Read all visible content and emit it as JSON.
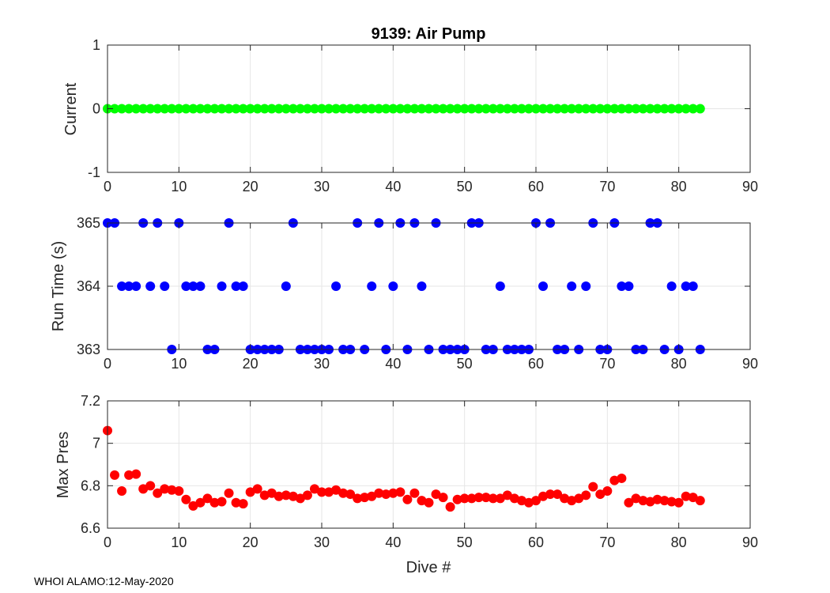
{
  "footer_text": "WHOI ALAMO:12-May-2020",
  "chart_data": [
    {
      "type": "scatter",
      "title": "9139: Air Pump",
      "xlabel": "",
      "ylabel": "Current",
      "xlim": [
        0,
        90
      ],
      "ylim": [
        -1,
        1
      ],
      "x_ticks": [
        "0",
        "10",
        "20",
        "30",
        "40",
        "50",
        "60",
        "70",
        "80",
        "90"
      ],
      "y_ticks": [
        "-1",
        "0",
        "1"
      ],
      "grid": true,
      "color": "#00ff00",
      "x": [
        0,
        1,
        2,
        3,
        4,
        5,
        6,
        7,
        8,
        9,
        10,
        11,
        12,
        13,
        14,
        15,
        16,
        17,
        18,
        19,
        20,
        21,
        22,
        23,
        24,
        25,
        26,
        27,
        28,
        29,
        30,
        31,
        32,
        33,
        34,
        35,
        36,
        37,
        38,
        39,
        40,
        41,
        42,
        43,
        44,
        45,
        46,
        47,
        48,
        49,
        50,
        51,
        52,
        53,
        54,
        55,
        56,
        57,
        58,
        59,
        60,
        61,
        62,
        63,
        64,
        65,
        66,
        67,
        68,
        69,
        70,
        71,
        72,
        73,
        74,
        75,
        76,
        77,
        78,
        79,
        80,
        81,
        82,
        83
      ],
      "y": [
        0,
        0,
        0,
        0,
        0,
        0,
        0,
        0,
        0,
        0,
        0,
        0,
        0,
        0,
        0,
        0,
        0,
        0,
        0,
        0,
        0,
        0,
        0,
        0,
        0,
        0,
        0,
        0,
        0,
        0,
        0,
        0,
        0,
        0,
        0,
        0,
        0,
        0,
        0,
        0,
        0,
        0,
        0,
        0,
        0,
        0,
        0,
        0,
        0,
        0,
        0,
        0,
        0,
        0,
        0,
        0,
        0,
        0,
        0,
        0,
        0,
        0,
        0,
        0,
        0,
        0,
        0,
        0,
        0,
        0,
        0,
        0,
        0,
        0,
        0,
        0,
        0,
        0,
        0,
        0,
        0,
        0,
        0,
        0
      ]
    },
    {
      "type": "scatter",
      "title": "",
      "xlabel": "",
      "ylabel": "Run Time (s)",
      "xlim": [
        0,
        90
      ],
      "ylim": [
        363,
        365
      ],
      "x_ticks": [
        "0",
        "10",
        "20",
        "30",
        "40",
        "50",
        "60",
        "70",
        "80",
        "90"
      ],
      "y_ticks": [
        "363",
        "364",
        "365"
      ],
      "grid": true,
      "color": "#0000ff",
      "x": [
        0,
        1,
        2,
        3,
        4,
        5,
        6,
        7,
        8,
        9,
        10,
        11,
        12,
        13,
        14,
        15,
        16,
        17,
        18,
        19,
        20,
        21,
        22,
        23,
        24,
        25,
        26,
        27,
        28,
        29,
        30,
        31,
        32,
        33,
        34,
        35,
        36,
        37,
        38,
        39,
        40,
        41,
        42,
        43,
        44,
        45,
        46,
        47,
        48,
        49,
        50,
        51,
        52,
        53,
        54,
        55,
        56,
        57,
        58,
        59,
        60,
        61,
        62,
        63,
        64,
        65,
        66,
        67,
        68,
        69,
        70,
        71,
        72,
        73,
        74,
        75,
        76,
        77,
        78,
        79,
        80,
        81,
        82,
        83
      ],
      "y": [
        365,
        365,
        364,
        364,
        364,
        365,
        364,
        365,
        364,
        363,
        365,
        364,
        364,
        364,
        363,
        363,
        364,
        365,
        364,
        364,
        363,
        363,
        363,
        363,
        363,
        364,
        365,
        363,
        363,
        363,
        363,
        363,
        364,
        363,
        363,
        365,
        363,
        364,
        365,
        363,
        364,
        365,
        363,
        365,
        364,
        363,
        365,
        363,
        363,
        363,
        363,
        365,
        365,
        363,
        363,
        364,
        363,
        363,
        363,
        363,
        365,
        364,
        365,
        363,
        363,
        364,
        363,
        364,
        365,
        363,
        363,
        365,
        364,
        364,
        363,
        363,
        365,
        365,
        363,
        364,
        363,
        364,
        364,
        363
      ]
    },
    {
      "type": "scatter",
      "title": "",
      "xlabel": "Dive #",
      "ylabel": "Max Pres",
      "xlim": [
        0,
        90
      ],
      "ylim": [
        6.6,
        7.2
      ],
      "x_ticks": [
        "0",
        "10",
        "20",
        "30",
        "40",
        "50",
        "60",
        "70",
        "80",
        "90"
      ],
      "y_ticks": [
        "6.6",
        "6.8",
        "7",
        "7.2"
      ],
      "grid": true,
      "color": "#ff0000",
      "x": [
        0,
        1,
        2,
        3,
        4,
        5,
        6,
        7,
        8,
        9,
        10,
        11,
        12,
        13,
        14,
        15,
        16,
        17,
        18,
        19,
        20,
        21,
        22,
        23,
        24,
        25,
        26,
        27,
        28,
        29,
        30,
        31,
        32,
        33,
        34,
        35,
        36,
        37,
        38,
        39,
        40,
        41,
        42,
        43,
        44,
        45,
        46,
        47,
        48,
        49,
        50,
        51,
        52,
        53,
        54,
        55,
        56,
        57,
        58,
        59,
        60,
        61,
        62,
        63,
        64,
        65,
        66,
        67,
        68,
        69,
        70,
        71,
        72,
        73,
        74,
        75,
        76,
        77,
        78,
        79,
        80,
        81,
        82,
        83
      ],
      "y": [
        7.06,
        6.85,
        6.775,
        6.85,
        6.855,
        6.785,
        6.8,
        6.765,
        6.785,
        6.78,
        6.775,
        6.735,
        6.705,
        6.72,
        6.74,
        6.72,
        6.725,
        6.765,
        6.72,
        6.715,
        6.77,
        6.785,
        6.755,
        6.765,
        6.75,
        6.755,
        6.75,
        6.74,
        6.755,
        6.785,
        6.77,
        6.77,
        6.78,
        6.765,
        6.76,
        6.74,
        6.745,
        6.75,
        6.765,
        6.76,
        6.765,
        6.77,
        6.735,
        6.765,
        6.73,
        6.72,
        6.76,
        6.745,
        6.7,
        6.735,
        6.74,
        6.74,
        6.745,
        6.745,
        6.74,
        6.74,
        6.755,
        6.74,
        6.73,
        6.72,
        6.73,
        6.75,
        6.76,
        6.76,
        6.74,
        6.73,
        6.74,
        6.755,
        6.795,
        6.76,
        6.775,
        6.825,
        6.835,
        6.72,
        6.74,
        6.73,
        6.725,
        6.735,
        6.73,
        6.725,
        6.72,
        6.75,
        6.745,
        6.73
      ]
    }
  ]
}
